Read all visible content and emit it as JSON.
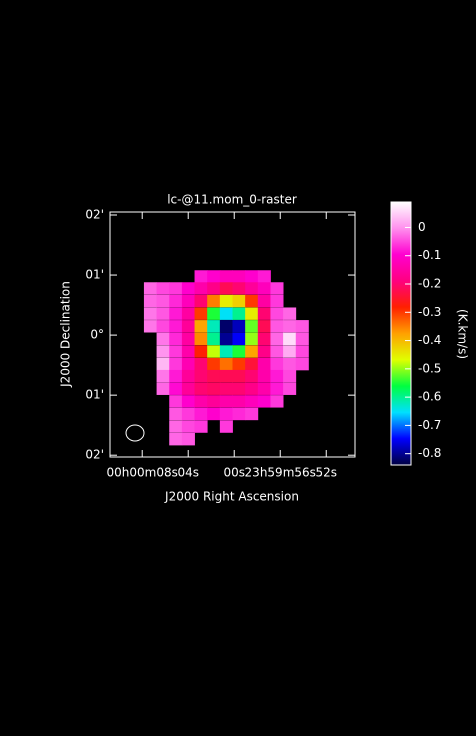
{
  "chart_data": {
    "type": "heatmap",
    "title": "lc-@11.mom_0-raster",
    "x_label": "J2000 Right Ascension",
    "y_label": "J2000 Declination",
    "colorbar_label": "(K.km/s)",
    "xlim": [
      10.8,
      -10.5
    ],
    "xticks": [
      {
        "value": 8,
        "label": "00h00m08s"
      },
      {
        "value": 4,
        "label": "04s"
      },
      {
        "value": 0,
        "label": "00s"
      },
      {
        "value": -4,
        "label": "23h59m56s"
      },
      {
        "value": -8,
        "label": "52s"
      }
    ],
    "ylim": [
      -2.03,
      2.05
    ],
    "yticks": [
      {
        "value": 2,
        "label": "02'"
      },
      {
        "value": 1,
        "label": "01'"
      },
      {
        "value": 0,
        "label": "0°"
      },
      {
        "value": -1,
        "label": "01'"
      },
      {
        "value": -2,
        "label": "02'"
      }
    ],
    "clim": [
      -0.84,
      0.09
    ],
    "cticks": [
      0,
      -0.1,
      -0.2,
      -0.3,
      -0.4,
      -0.5,
      -0.6,
      -0.7,
      -0.8
    ],
    "colormap": [
      "#000040",
      "#0000ff",
      "#00e0ff",
      "#00ff40",
      "#e0ff00",
      "#ffa000",
      "#ff2000",
      "#ff0080",
      "#ff00d0",
      "#ff90ee",
      "#ffffff"
    ],
    "x": [
      7.3,
      6.2,
      5.1,
      4.0,
      2.9,
      1.8,
      0.7,
      -0.4,
      -1.5,
      -2.6,
      -3.7,
      -4.8,
      -5.9
    ],
    "y": [
      0.98,
      0.78,
      0.57,
      0.36,
      0.15,
      -0.06,
      -0.27,
      -0.48,
      -0.68,
      -0.89,
      -1.1,
      -1.31,
      -1.52,
      -1.73
    ],
    "z": [
      [
        null,
        null,
        null,
        null,
        -0.08,
        -0.1,
        -0.12,
        -0.12,
        -0.1,
        -0.08,
        null,
        null,
        null
      ],
      [
        -0.03,
        -0.05,
        -0.06,
        -0.1,
        -0.14,
        -0.18,
        -0.22,
        -0.2,
        -0.16,
        -0.12,
        -0.06,
        null,
        null
      ],
      [
        -0.03,
        -0.04,
        -0.07,
        -0.12,
        -0.2,
        -0.35,
        -0.45,
        -0.42,
        -0.3,
        -0.15,
        -0.06,
        null,
        null
      ],
      [
        -0.02,
        -0.04,
        -0.08,
        -0.15,
        -0.3,
        -0.55,
        -0.65,
        -0.6,
        -0.45,
        -0.2,
        -0.05,
        -0.03,
        null
      ],
      [
        -0.02,
        -0.05,
        -0.08,
        -0.16,
        -0.38,
        -0.62,
        -0.82,
        -0.78,
        -0.52,
        -0.22,
        -0.04,
        -0.03,
        -0.04
      ],
      [
        null,
        -0.02,
        -0.07,
        -0.15,
        -0.36,
        -0.6,
        -0.8,
        -0.75,
        -0.5,
        -0.2,
        -0.03,
        0.06,
        -0.04
      ],
      [
        null,
        0.0,
        -0.06,
        -0.14,
        -0.28,
        -0.48,
        -0.62,
        -0.55,
        -0.38,
        -0.18,
        -0.04,
        0.02,
        -0.05
      ],
      [
        null,
        0.03,
        -0.06,
        -0.13,
        -0.2,
        -0.3,
        -0.34,
        -0.3,
        -0.24,
        -0.14,
        -0.06,
        -0.04,
        -0.05
      ],
      [
        null,
        -0.02,
        -0.08,
        -0.16,
        -0.2,
        -0.22,
        -0.22,
        -0.22,
        -0.2,
        -0.14,
        -0.08,
        -0.05,
        null
      ],
      [
        null,
        -0.03,
        -0.09,
        -0.16,
        -0.2,
        -0.21,
        -0.2,
        -0.2,
        -0.18,
        -0.14,
        -0.08,
        -0.05,
        null
      ],
      [
        null,
        null,
        -0.06,
        -0.1,
        -0.14,
        -0.16,
        -0.14,
        -0.14,
        -0.12,
        -0.1,
        -0.06,
        null,
        null
      ],
      [
        null,
        null,
        -0.04,
        -0.06,
        -0.08,
        -0.1,
        -0.08,
        -0.07,
        -0.06,
        null,
        null,
        null,
        null
      ],
      [
        null,
        null,
        -0.03,
        -0.05,
        -0.06,
        null,
        -0.06,
        null,
        null,
        null,
        null,
        null,
        null
      ],
      [
        null,
        null,
        -0.03,
        -0.04,
        null,
        null,
        null,
        null,
        null,
        null,
        null,
        null,
        null
      ]
    ]
  }
}
